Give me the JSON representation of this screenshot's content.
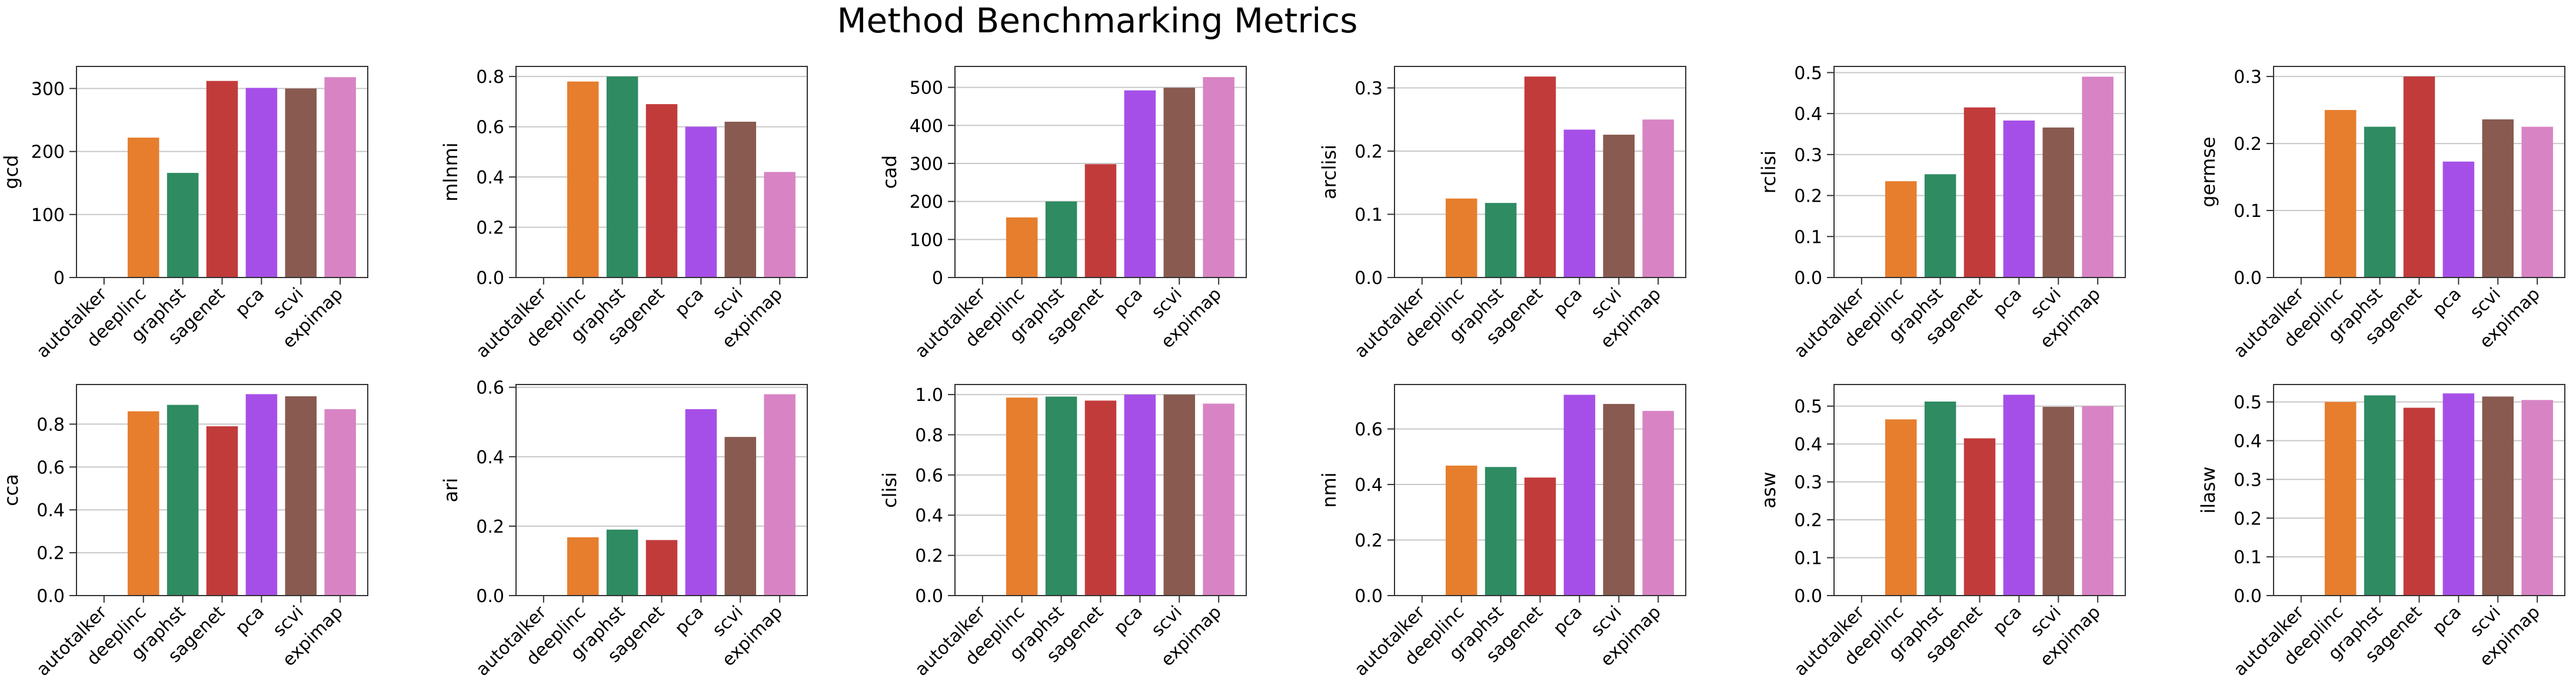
{
  "figure": {
    "title": "Method Benchmarking Metrics"
  },
  "chart_data": [
    {
      "type": "bar",
      "title": "",
      "xlabel": "",
      "ylabel": "gcd",
      "categories": [
        "autotalker",
        "deeplinc",
        "graphst",
        "sagenet",
        "pca",
        "scvi",
        "expimap"
      ],
      "values": [
        0,
        222,
        166,
        312,
        301,
        300,
        318
      ],
      "ylim": [
        0,
        335
      ],
      "yticks": [
        0,
        100,
        200,
        300
      ],
      "yticklabels": [
        "0",
        "100",
        "200",
        "300"
      ],
      "grid": "y"
    },
    {
      "type": "bar",
      "title": "",
      "xlabel": "",
      "ylabel": "mlnmi",
      "categories": [
        "autotalker",
        "deeplinc",
        "graphst",
        "sagenet",
        "pca",
        "scvi",
        "expimap"
      ],
      "values": [
        0,
        0.78,
        0.8,
        0.69,
        0.6,
        0.62,
        0.42
      ],
      "ylim": [
        0,
        0.84
      ],
      "yticks": [
        0,
        0.2,
        0.4,
        0.6,
        0.8
      ],
      "yticklabels": [
        "0.0",
        "0.2",
        "0.4",
        "0.6",
        "0.8"
      ],
      "grid": "y"
    },
    {
      "type": "bar",
      "title": "",
      "xlabel": "",
      "ylabel": "cad",
      "categories": [
        "autotalker",
        "deeplinc",
        "graphst",
        "sagenet",
        "pca",
        "scvi",
        "expimap"
      ],
      "values": [
        0,
        158,
        200,
        298,
        492,
        499,
        527
      ],
      "ylim": [
        0,
        555
      ],
      "yticks": [
        0,
        100,
        200,
        300,
        400,
        500
      ],
      "yticklabels": [
        "0",
        "100",
        "200",
        "300",
        "400",
        "500"
      ],
      "grid": "y"
    },
    {
      "type": "bar",
      "title": "",
      "xlabel": "",
      "ylabel": "arclisi",
      "categories": [
        "autotalker",
        "deeplinc",
        "graphst",
        "sagenet",
        "pca",
        "scvi",
        "expimap"
      ],
      "values": [
        0,
        0.125,
        0.118,
        0.318,
        0.234,
        0.226,
        0.25
      ],
      "ylim": [
        0,
        0.334
      ],
      "yticks": [
        0,
        0.1,
        0.2,
        0.3
      ],
      "yticklabels": [
        "0.0",
        "0.1",
        "0.2",
        "0.3"
      ],
      "grid": "y"
    },
    {
      "type": "bar",
      "title": "",
      "xlabel": "",
      "ylabel": "rclisi",
      "categories": [
        "autotalker",
        "deeplinc",
        "graphst",
        "sagenet",
        "pca",
        "scvi",
        "expimap"
      ],
      "values": [
        0,
        0.235,
        0.252,
        0.415,
        0.383,
        0.366,
        0.49
      ],
      "ylim": [
        0,
        0.515
      ],
      "yticks": [
        0,
        0.1,
        0.2,
        0.3,
        0.4,
        0.5
      ],
      "yticklabels": [
        "0.0",
        "0.1",
        "0.2",
        "0.3",
        "0.4",
        "0.5"
      ],
      "grid": "y"
    },
    {
      "type": "bar",
      "title": "",
      "xlabel": "",
      "ylabel": "germse",
      "categories": [
        "autotalker",
        "deeplinc",
        "graphst",
        "sagenet",
        "pca",
        "scvi",
        "expimap"
      ],
      "values": [
        0,
        0.25,
        0.225,
        0.3,
        0.173,
        0.236,
        0.225
      ],
      "ylim": [
        0,
        0.315
      ],
      "yticks": [
        0,
        0.1,
        0.2,
        0.3
      ],
      "yticklabels": [
        "0.0",
        "0.1",
        "0.2",
        "0.3"
      ],
      "grid": "y"
    },
    {
      "type": "bar",
      "title": "",
      "xlabel": "",
      "ylabel": "cca",
      "categories": [
        "autotalker",
        "deeplinc",
        "graphst",
        "sagenet",
        "pca",
        "scvi",
        "expimap"
      ],
      "values": [
        0,
        0.86,
        0.89,
        0.79,
        0.94,
        0.93,
        0.87
      ],
      "ylim": [
        0,
        0.985
      ],
      "yticks": [
        0,
        0.2,
        0.4,
        0.6,
        0.8
      ],
      "yticklabels": [
        "0.0",
        "0.2",
        "0.4",
        "0.6",
        "0.8"
      ],
      "grid": "y"
    },
    {
      "type": "bar",
      "title": "",
      "xlabel": "",
      "ylabel": "ari",
      "categories": [
        "autotalker",
        "deeplinc",
        "graphst",
        "sagenet",
        "pca",
        "scvi",
        "expimap"
      ],
      "values": [
        0,
        0.168,
        0.19,
        0.16,
        0.537,
        0.457,
        0.58
      ],
      "ylim": [
        0,
        0.608
      ],
      "yticks": [
        0,
        0.2,
        0.4,
        0.6
      ],
      "yticklabels": [
        "0.0",
        "0.2",
        "0.4",
        "0.6"
      ],
      "grid": "y"
    },
    {
      "type": "bar",
      "title": "",
      "xlabel": "",
      "ylabel": "clisi",
      "categories": [
        "autotalker",
        "deeplinc",
        "graphst",
        "sagenet",
        "pca",
        "scvi",
        "expimap"
      ],
      "values": [
        0,
        0.985,
        0.99,
        0.97,
        1.0,
        1.0,
        0.955
      ],
      "ylim": [
        0,
        1.05
      ],
      "yticks": [
        0,
        0.2,
        0.4,
        0.6,
        0.8,
        1.0
      ],
      "yticklabels": [
        "0.0",
        "0.2",
        "0.4",
        "0.6",
        "0.8",
        "1.0"
      ],
      "grid": "y"
    },
    {
      "type": "bar",
      "title": "",
      "xlabel": "",
      "ylabel": "nmi",
      "categories": [
        "autotalker",
        "deeplinc",
        "graphst",
        "sagenet",
        "pca",
        "scvi",
        "expimap"
      ],
      "values": [
        0,
        0.468,
        0.463,
        0.425,
        0.723,
        0.69,
        0.665
      ],
      "ylim": [
        0,
        0.76
      ],
      "yticks": [
        0,
        0.2,
        0.4,
        0.6
      ],
      "yticklabels": [
        "0.0",
        "0.2",
        "0.4",
        "0.6"
      ],
      "grid": "y"
    },
    {
      "type": "bar",
      "title": "",
      "xlabel": "",
      "ylabel": "asw",
      "categories": [
        "autotalker",
        "deeplinc",
        "graphst",
        "sagenet",
        "pca",
        "scvi",
        "expimap"
      ],
      "values": [
        0,
        0.465,
        0.512,
        0.415,
        0.53,
        0.498,
        0.5
      ],
      "ylim": [
        0,
        0.557
      ],
      "yticks": [
        0,
        0.1,
        0.2,
        0.3,
        0.4,
        0.5
      ],
      "yticklabels": [
        "0.0",
        "0.1",
        "0.2",
        "0.3",
        "0.4",
        "0.5"
      ],
      "grid": "y"
    },
    {
      "type": "bar",
      "title": "",
      "xlabel": "",
      "ylabel": "ilasw",
      "categories": [
        "autotalker",
        "deeplinc",
        "graphst",
        "sagenet",
        "pca",
        "scvi",
        "expimap"
      ],
      "values": [
        0,
        0.5,
        0.517,
        0.485,
        0.522,
        0.514,
        0.505
      ],
      "ylim": [
        0,
        0.545
      ],
      "yticks": [
        0,
        0.1,
        0.2,
        0.3,
        0.4,
        0.5
      ],
      "yticklabels": [
        "0.0",
        "0.1",
        "0.2",
        "0.3",
        "0.4",
        "0.5"
      ],
      "grid": "y"
    }
  ],
  "palette": {
    "autotalker": "#1f77b4",
    "deeplinc": "#e67e2e",
    "graphst": "#2e8b62",
    "sagenet": "#c23b3b",
    "pca": "#a64fe8",
    "scvi": "#885a50",
    "expimap": "#d884c4",
    "grid": "#c8c8c8",
    "axis": "#333333"
  }
}
